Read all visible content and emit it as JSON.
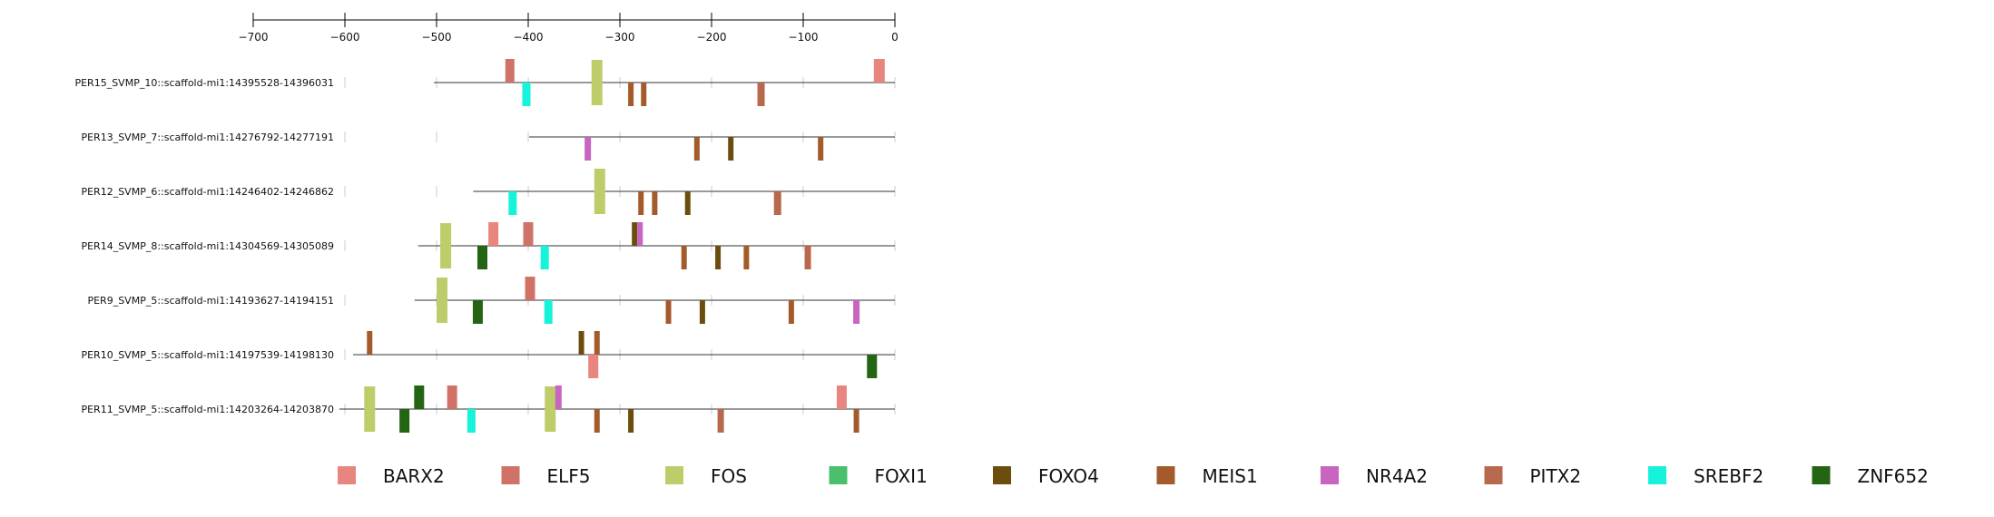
{
  "chart_data": {
    "type": "motif-map",
    "x_axis": {
      "ticks": [
        -700,
        -600,
        -500,
        -400,
        -300,
        -200,
        -100,
        0
      ],
      "tick_labels": [
        "−700",
        "−600",
        "−500",
        "−400",
        "−300",
        "−200",
        "−100",
        "0"
      ],
      "range": [
        -700,
        0
      ]
    },
    "factors": [
      {
        "name": "BARX2",
        "color": "#e8857f"
      },
      {
        "name": "ELF5",
        "color": "#d07268"
      },
      {
        "name": "FOS",
        "color": "#bfcc6a"
      },
      {
        "name": "FOXI1",
        "color": "#4cbf6e"
      },
      {
        "name": "FOXO4",
        "color": "#6b4e0d"
      },
      {
        "name": "MEIS1",
        "color": "#a45a2a"
      },
      {
        "name": "NR4A2",
        "color": "#c865c0"
      },
      {
        "name": "PITX2",
        "color": "#b8684c"
      },
      {
        "name": "SREBF2",
        "color": "#17f2da"
      },
      {
        "name": "ZNF652",
        "color": "#246514"
      }
    ],
    "sequences": [
      {
        "name": "PER15_SVMP_10::scaffold-mi1:14395528-14396031",
        "start": -503,
        "end": 0,
        "sites": [
          {
            "factor": "ELF5",
            "pos": -420,
            "strand": "+",
            "width": 10
          },
          {
            "factor": "SREBF2",
            "pos": -402,
            "strand": "-",
            "width": 9
          },
          {
            "factor": "FOS",
            "pos": -325,
            "strand": "+",
            "width": 12,
            "tall": true
          },
          {
            "factor": "MEIS1",
            "pos": -288,
            "strand": "-",
            "width": 6
          },
          {
            "factor": "MEIS1",
            "pos": -274,
            "strand": "-",
            "width": 6
          },
          {
            "factor": "PITX2",
            "pos": -146,
            "strand": "-",
            "width": 8
          },
          {
            "factor": "BARX2",
            "pos": -17,
            "strand": "+",
            "width": 12
          }
        ]
      },
      {
        "name": "PER13_SVMP_7::scaffold-mi1:14276792-14277191",
        "start": -399,
        "end": 0,
        "sites": [
          {
            "factor": "NR4A2",
            "pos": -335,
            "strand": "-",
            "width": 7
          },
          {
            "factor": "MEIS1",
            "pos": -216,
            "strand": "-",
            "width": 6
          },
          {
            "factor": "FOXO4",
            "pos": -179,
            "strand": "-",
            "width": 6
          },
          {
            "factor": "MEIS1",
            "pos": -81,
            "strand": "-",
            "width": 6
          }
        ]
      },
      {
        "name": "PER12_SVMP_6::scaffold-mi1:14246402-14246862",
        "start": -460,
        "end": 0,
        "sites": [
          {
            "factor": "SREBF2",
            "pos": -417,
            "strand": "-",
            "width": 9
          },
          {
            "factor": "FOS",
            "pos": -322,
            "strand": "+",
            "width": 12,
            "tall": true
          },
          {
            "factor": "MEIS1",
            "pos": -277,
            "strand": "-",
            "width": 6
          },
          {
            "factor": "MEIS1",
            "pos": -262,
            "strand": "-",
            "width": 6
          },
          {
            "factor": "FOXO4",
            "pos": -226,
            "strand": "-",
            "width": 6
          },
          {
            "factor": "PITX2",
            "pos": -128,
            "strand": "-",
            "width": 8
          }
        ]
      },
      {
        "name": "PER14_SVMP_8::scaffold-mi1:14304569-14305089",
        "start": -520,
        "end": 0,
        "sites": [
          {
            "factor": "FOS",
            "pos": -490,
            "strand": "+",
            "width": 12,
            "tall": true
          },
          {
            "factor": "ZNF652",
            "pos": -450,
            "strand": "-",
            "width": 11
          },
          {
            "factor": "BARX2",
            "pos": -438,
            "strand": "+",
            "width": 11
          },
          {
            "factor": "ELF5",
            "pos": -400,
            "strand": "+",
            "width": 11
          },
          {
            "factor": "SREBF2",
            "pos": -382,
            "strand": "-",
            "width": 9
          },
          {
            "factor": "FOXO4",
            "pos": -284,
            "strand": "+",
            "width": 6
          },
          {
            "factor": "NR4A2",
            "pos": -278,
            "strand": "+",
            "width": 6
          },
          {
            "factor": "MEIS1",
            "pos": -230,
            "strand": "-",
            "width": 6
          },
          {
            "factor": "FOXO4",
            "pos": -193,
            "strand": "-",
            "width": 6
          },
          {
            "factor": "MEIS1",
            "pos": -162,
            "strand": "-",
            "width": 6
          },
          {
            "factor": "PITX2",
            "pos": -95,
            "strand": "-",
            "width": 7
          }
        ]
      },
      {
        "name": "PER9_SVMP_5::scaffold-mi1:14193627-14194151",
        "start": -524,
        "end": 0,
        "sites": [
          {
            "factor": "FOS",
            "pos": -494,
            "strand": "+",
            "width": 12,
            "tall": true
          },
          {
            "factor": "ZNF652",
            "pos": -455,
            "strand": "-",
            "width": 11
          },
          {
            "factor": "ELF5",
            "pos": -398,
            "strand": "+",
            "width": 11
          },
          {
            "factor": "SREBF2",
            "pos": -378,
            "strand": "-",
            "width": 9
          },
          {
            "factor": "MEIS1",
            "pos": -247,
            "strand": "-",
            "width": 6
          },
          {
            "factor": "FOXO4",
            "pos": -210,
            "strand": "-",
            "width": 6
          },
          {
            "factor": "MEIS1",
            "pos": -113,
            "strand": "-",
            "width": 6
          },
          {
            "factor": "NR4A2",
            "pos": -42,
            "strand": "-",
            "width": 7
          }
        ]
      },
      {
        "name": "PER10_SVMP_5::scaffold-mi1:14197539-14198130",
        "start": -591,
        "end": 0,
        "sites": [
          {
            "factor": "MEIS1",
            "pos": -573,
            "strand": "+",
            "width": 6
          },
          {
            "factor": "FOXO4",
            "pos": -342,
            "strand": "+",
            "width": 6
          },
          {
            "factor": "MEIS1",
            "pos": -325,
            "strand": "+",
            "width": 6
          },
          {
            "factor": "BARX2",
            "pos": -329,
            "strand": "-",
            "width": 11
          },
          {
            "factor": "ZNF652",
            "pos": -25,
            "strand": "-",
            "width": 11
          }
        ]
      },
      {
        "name": "PER11_SVMP_5::scaffold-mi1:14203264-14203870",
        "start": -606,
        "end": 0,
        "sites": [
          {
            "factor": "FOS",
            "pos": -573,
            "strand": "+",
            "width": 12,
            "tall": true
          },
          {
            "factor": "ZNF652",
            "pos": -535,
            "strand": "-",
            "width": 11
          },
          {
            "factor": "ZNF652",
            "pos": -519,
            "strand": "+",
            "width": 11
          },
          {
            "factor": "ELF5",
            "pos": -483,
            "strand": "+",
            "width": 11
          },
          {
            "factor": "SREBF2",
            "pos": -462,
            "strand": "-",
            "width": 9
          },
          {
            "factor": "FOS",
            "pos": -376,
            "strand": "+",
            "width": 12,
            "tall": true
          },
          {
            "factor": "NR4A2",
            "pos": -367,
            "strand": "+",
            "width": 7
          },
          {
            "factor": "MEIS1",
            "pos": -325,
            "strand": "-",
            "width": 6
          },
          {
            "factor": "FOXO4",
            "pos": -288,
            "strand": "-",
            "width": 6
          },
          {
            "factor": "PITX2",
            "pos": -190,
            "strand": "-",
            "width": 7
          },
          {
            "factor": "BARX2",
            "pos": -58,
            "strand": "+",
            "width": 11
          },
          {
            "factor": "MEIS1",
            "pos": -42,
            "strand": "-",
            "width": 6
          }
        ]
      }
    ]
  }
}
